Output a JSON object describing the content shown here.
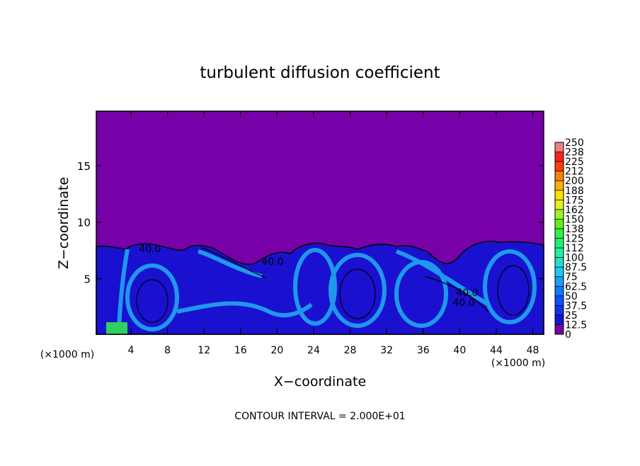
{
  "chart_data": {
    "type": "contour",
    "title": "turbulent diffusion coefficient",
    "x_label": "X−coordinate",
    "y_label": "Z−coordinate",
    "x_unit": "(×1000 m)",
    "y_unit": "(×1000 m)",
    "footnote": "CONTOUR INTERVAL = 2.000E+01",
    "contour_labels": [
      "40.0",
      "40.0",
      "40.0",
      "40.0"
    ],
    "xlim": [
      0.2,
      49.2
    ],
    "xticks": [
      4,
      8,
      12,
      16,
      20,
      24,
      28,
      32,
      36,
      40,
      44,
      48
    ],
    "ylim": [
      0.1,
      19.8
    ],
    "yticks": [
      5,
      10,
      15
    ],
    "colorbar": {
      "ticks": [
        0,
        12.5,
        25,
        37.5,
        50,
        62.5,
        75,
        87.5,
        100,
        {
          "value": 112.5,
          "label": "112"
        },
        125,
        {
          "value": 137.5,
          "label": "138"
        },
        150,
        {
          "value": 162.5,
          "label": "162"
        },
        175,
        {
          "value": 187.5,
          "label": "188"
        },
        200,
        {
          "value": 212.5,
          "label": "212"
        },
        225,
        {
          "value": 237.5,
          "label": "238"
        },
        250
      ],
      "colors": [
        "#7800a8",
        "#1a10d0",
        "#1030f0",
        "#1050ff",
        "#1478ff",
        "#1aa0ff",
        "#20c8f0",
        "#20e0c8",
        "#20f0a0",
        "#20f070",
        "#30f040",
        "#60f020",
        "#a0f020",
        "#e0f020",
        "#ffe000",
        "#ffb000",
        "#ff8000",
        "#ff4000",
        "#ff2020",
        "#f08080"
      ]
    }
  }
}
